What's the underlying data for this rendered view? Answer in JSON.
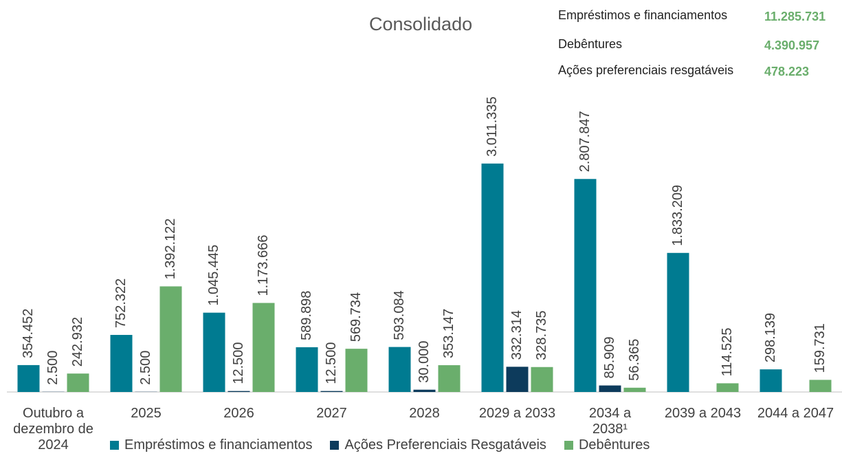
{
  "chart_data": {
    "type": "bar",
    "title": "Consolidado",
    "categories": [
      "Outubro a dezembro de 2024",
      "2025",
      "2026",
      "2027",
      "2028",
      "2029 a 2033",
      "2034 a 2038¹",
      "2039 a 2043",
      "2044 a 2047"
    ],
    "series": [
      {
        "name": "Empréstimos e financiamentos",
        "color": "#007b91",
        "values": [
          354452,
          752322,
          1045445,
          589898,
          593084,
          3011335,
          2807847,
          1833209,
          298139
        ],
        "value_labels": [
          "354.452",
          "752.322",
          "1.045.445",
          "589.898",
          "593.084",
          "3.011.335",
          "2.807.847",
          "1.833.209",
          "298.139"
        ]
      },
      {
        "name": "Ações Preferenciais Resgatáveis",
        "color": "#0d3b5c",
        "values": [
          2500,
          2500,
          12500,
          12500,
          30000,
          332314,
          85909,
          null,
          null
        ],
        "value_labels": [
          "2.500",
          "2.500",
          "12.500",
          "12.500",
          "30.000",
          "332.314",
          "85.909",
          null,
          null
        ]
      },
      {
        "name": "Debêntures",
        "color": "#6aae6c",
        "values": [
          242932,
          1392122,
          1173666,
          569734,
          353147,
          328735,
          56365,
          114525,
          159731
        ],
        "value_labels": [
          "242.932",
          "1.392.122",
          "1.173.666",
          "569.734",
          "353.147",
          "328.735",
          "56.365",
          "114.525",
          "159.731"
        ]
      }
    ],
    "ylim": [
      0,
      3200000
    ],
    "totals": {
      "names": [
        "Empréstimos e financiamentos",
        "Debêntures",
        "Ações preferenciais resgatáveis"
      ],
      "values": [
        11285731,
        4390957,
        478223
      ],
      "value_labels": [
        "11.285.731",
        "4.390.957",
        "478.223"
      ],
      "color": "#6aae6c"
    },
    "legend": "bottom"
  }
}
